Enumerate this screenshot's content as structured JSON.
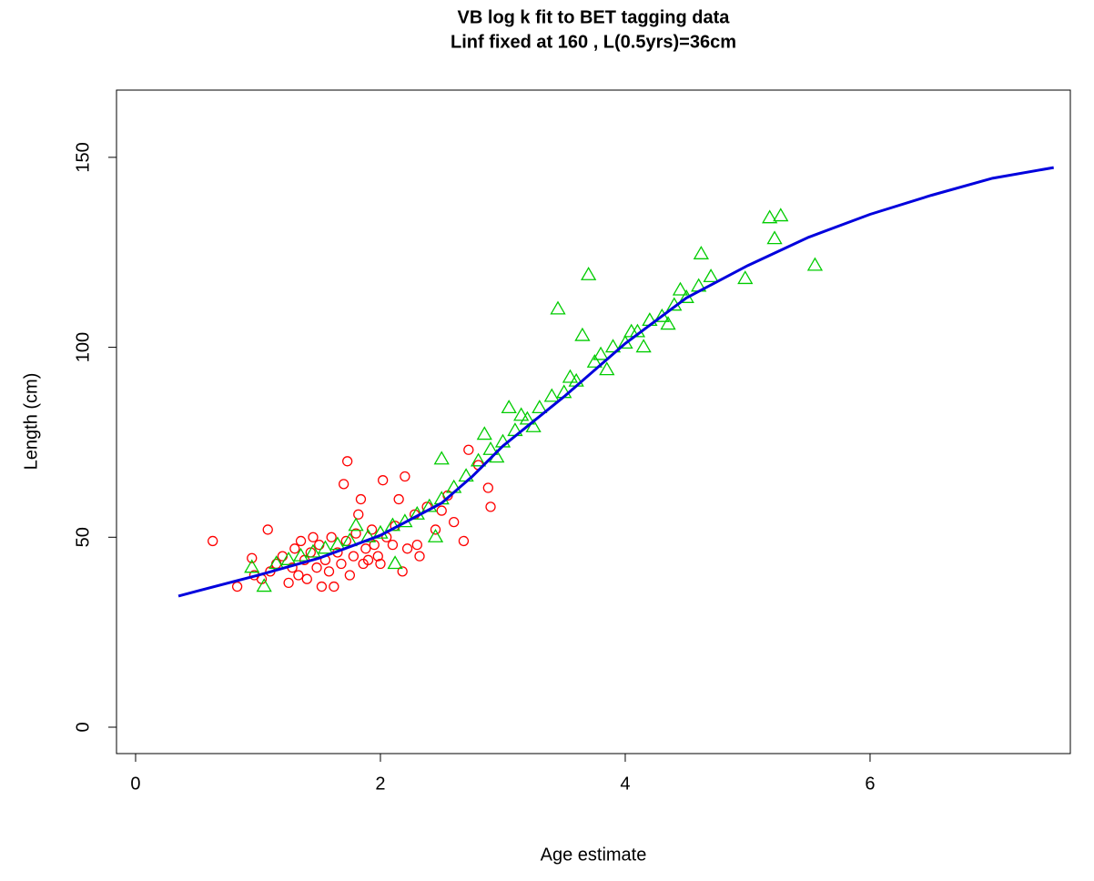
{
  "chart_data": {
    "type": "scatter",
    "title": "VB log k fit to BET tagging data",
    "subtitle": "Linf fixed at 160 , L(0.5yrs)=36cm",
    "x_label": "Age estimate",
    "y_label": "Length (cm)",
    "xlim": [
      -0.156,
      7.636
    ],
    "ylim": [
      -6.95,
      167.7
    ],
    "xticks": [
      0,
      2,
      4,
      6
    ],
    "yticks": [
      0,
      50,
      100,
      150
    ],
    "series": [
      {
        "marker": "circle",
        "color": "#ff0000",
        "x": [
          0.63,
          0.83,
          0.95,
          0.97,
          1.03,
          1.08,
          1.1,
          1.15,
          1.2,
          1.25,
          1.28,
          1.3,
          1.33,
          1.35,
          1.38,
          1.4,
          1.43,
          1.45,
          1.48,
          1.5,
          1.52,
          1.55,
          1.58,
          1.6,
          1.62,
          1.65,
          1.68,
          1.7,
          1.72,
          1.73,
          1.75,
          1.78,
          1.8,
          1.82,
          1.84,
          1.86,
          1.88,
          1.9,
          1.93,
          1.95,
          1.98,
          2.0,
          2.02,
          2.05,
          2.1,
          2.12,
          2.15,
          2.18,
          2.2,
          2.22,
          2.28,
          2.3,
          2.32,
          2.38,
          2.45,
          2.5,
          2.55,
          2.6,
          2.68,
          2.72,
          2.8,
          2.88,
          2.9
        ],
        "values": [
          49,
          37,
          44.5,
          40,
          39,
          52,
          41,
          43,
          45,
          38,
          42,
          47,
          40,
          49,
          44,
          39,
          46,
          50,
          42,
          48,
          37,
          44,
          41,
          50,
          37,
          46,
          43,
          64,
          49,
          70,
          40,
          45,
          51,
          56,
          60,
          43,
          47,
          44,
          52,
          48,
          45,
          43,
          65,
          50,
          48,
          53,
          60,
          41,
          66,
          47,
          56,
          48,
          45,
          58,
          52,
          57,
          61,
          54,
          49,
          73,
          69,
          63,
          58
        ]
      },
      {
        "marker": "triangle",
        "color": "#00cc00",
        "x": [
          0.95,
          1.05,
          1.15,
          1.25,
          1.35,
          1.45,
          1.55,
          1.65,
          1.75,
          1.8,
          1.9,
          2.0,
          2.1,
          2.12,
          2.2,
          2.3,
          2.4,
          2.45,
          2.5,
          2.5,
          2.6,
          2.7,
          2.8,
          2.85,
          2.9,
          2.95,
          3.0,
          3.05,
          3.1,
          3.15,
          3.2,
          3.25,
          3.3,
          3.4,
          3.45,
          3.5,
          3.55,
          3.6,
          3.65,
          3.7,
          3.75,
          3.8,
          3.85,
          3.9,
          4.0,
          4.05,
          4.1,
          4.15,
          4.2,
          4.3,
          4.35,
          4.4,
          4.45,
          4.5,
          4.6,
          4.62,
          4.7,
          4.98,
          5.18,
          5.22,
          5.27,
          5.55
        ],
        "values": [
          42,
          37,
          43,
          44,
          45,
          46,
          47,
          48,
          49,
          53,
          50,
          51,
          53,
          43,
          54,
          56,
          58,
          50,
          60,
          70.5,
          63,
          66,
          70,
          77,
          73,
          71,
          75,
          84,
          78,
          82,
          81,
          79,
          84,
          87,
          110,
          88,
          92,
          91,
          103,
          119,
          96,
          98,
          94,
          100,
          101,
          104,
          104,
          100,
          107,
          108,
          106,
          111,
          115,
          113,
          116,
          124.5,
          118.5,
          118,
          134,
          128.5,
          134.5,
          121.5
        ]
      },
      {
        "marker": "line",
        "color": "#0000dd",
        "x": [
          0.35,
          0.5,
          1,
          1.5,
          2,
          2.5,
          2.75,
          3,
          3.5,
          4,
          4.5,
          5,
          5.5,
          6,
          6.5,
          7,
          7.5
        ],
        "values": [
          34.5,
          35.8,
          40,
          44.5,
          50.5,
          59,
          66,
          74,
          87,
          101,
          113,
          121.5,
          129,
          135,
          140,
          144.5,
          147.3
        ]
      }
    ]
  }
}
